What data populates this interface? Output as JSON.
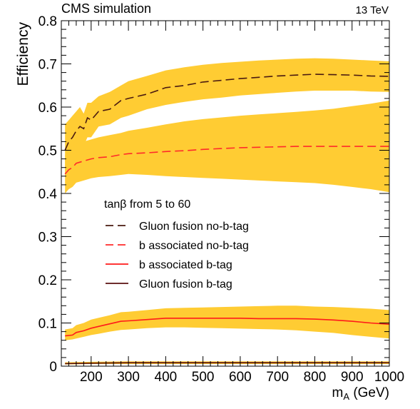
{
  "header": {
    "left_label": "CMS simulation",
    "right_label": "13 TeV"
  },
  "chart_data": {
    "type": "line",
    "title": "",
    "xlabel_main": "m",
    "xlabel_sub": "A",
    "xlabel_unit": "(GeV)",
    "ylabel": "Efficiency",
    "xlim": [
      120,
      1000
    ],
    "ylim": [
      0,
      0.8
    ],
    "x_ticks": [
      200,
      300,
      400,
      500,
      600,
      700,
      800,
      900,
      1000
    ],
    "y_ticks": [
      0,
      0.1,
      0.2,
      0.3,
      0.4,
      0.5,
      0.6,
      0.7,
      0.8
    ],
    "y_tick_labels": [
      "0",
      "0.1",
      "0.2",
      "0.3",
      "0.4",
      "0.5",
      "0.6",
      "0.7",
      "0.8"
    ],
    "legend": {
      "header": "tanβ from 5 to 60",
      "placement": "center-left"
    },
    "band_color": "#ffcc33",
    "series": [
      {
        "name": "Gluon fusion no-b-tag",
        "color": "#4a1a10",
        "dash": "dashed",
        "x": [
          130,
          140,
          150,
          160,
          170,
          180,
          190,
          200,
          220,
          250,
          280,
          300,
          350,
          400,
          450,
          500,
          550,
          600,
          650,
          700,
          750,
          800,
          850,
          900,
          950,
          1000
        ],
        "y": [
          0.5,
          0.52,
          0.53,
          0.545,
          0.555,
          0.55,
          0.575,
          0.57,
          0.59,
          0.595,
          0.615,
          0.62,
          0.63,
          0.645,
          0.65,
          0.658,
          0.662,
          0.666,
          0.669,
          0.672,
          0.674,
          0.676,
          0.675,
          0.674,
          0.672,
          0.671
        ],
        "upper": [
          0.56,
          0.57,
          0.58,
          0.59,
          0.6,
          0.585,
          0.61,
          0.61,
          0.625,
          0.635,
          0.65,
          0.66,
          0.672,
          0.685,
          0.692,
          0.698,
          0.702,
          0.705,
          0.708,
          0.71,
          0.712,
          0.713,
          0.712,
          0.71,
          0.708,
          0.706
        ],
        "lower": [
          0.44,
          0.47,
          0.48,
          0.5,
          0.51,
          0.51,
          0.53,
          0.53,
          0.555,
          0.56,
          0.575,
          0.58,
          0.595,
          0.605,
          0.612,
          0.618,
          0.622,
          0.627,
          0.63,
          0.633,
          0.636,
          0.638,
          0.638,
          0.638,
          0.636,
          0.635
        ]
      },
      {
        "name": "b associated no-b-tag",
        "color": "#ff2a2a",
        "dash": "dashed",
        "x": [
          130,
          140,
          150,
          160,
          180,
          200,
          220,
          250,
          280,
          300,
          350,
          400,
          450,
          500,
          550,
          600,
          650,
          700,
          750,
          800,
          850,
          900,
          950,
          1000
        ],
        "y": [
          0.445,
          0.455,
          0.46,
          0.47,
          0.475,
          0.48,
          0.483,
          0.485,
          0.49,
          0.492,
          0.494,
          0.497,
          0.499,
          0.502,
          0.504,
          0.506,
          0.507,
          0.508,
          0.509,
          0.509,
          0.509,
          0.509,
          0.509,
          0.509
        ],
        "upper": [
          0.49,
          0.5,
          0.51,
          0.515,
          0.52,
          0.525,
          0.53,
          0.535,
          0.54,
          0.545,
          0.552,
          0.56,
          0.567,
          0.572,
          0.576,
          0.58,
          0.583,
          0.586,
          0.589,
          0.592,
          0.596,
          0.602,
          0.608,
          0.615
        ],
        "lower": [
          0.4,
          0.41,
          0.415,
          0.425,
          0.43,
          0.435,
          0.438,
          0.44,
          0.443,
          0.445,
          0.443,
          0.44,
          0.438,
          0.436,
          0.434,
          0.432,
          0.43,
          0.428,
          0.426,
          0.424,
          0.42,
          0.415,
          0.41,
          0.403
        ]
      },
      {
        "name": "b associated b-tag",
        "color": "#ff1a1a",
        "dash": "solid",
        "x": [
          130,
          150,
          160,
          180,
          200,
          220,
          250,
          280,
          300,
          350,
          400,
          450,
          500,
          550,
          600,
          650,
          700,
          750,
          800,
          850,
          900,
          950,
          1000
        ],
        "y": [
          0.07,
          0.072,
          0.078,
          0.082,
          0.088,
          0.092,
          0.098,
          0.104,
          0.105,
          0.108,
          0.111,
          0.111,
          0.111,
          0.111,
          0.111,
          0.11,
          0.11,
          0.11,
          0.109,
          0.107,
          0.104,
          0.1,
          0.097
        ],
        "upper": [
          0.085,
          0.088,
          0.095,
          0.1,
          0.108,
          0.112,
          0.118,
          0.125,
          0.126,
          0.13,
          0.134,
          0.135,
          0.136,
          0.137,
          0.138,
          0.139,
          0.14,
          0.14,
          0.138,
          0.137,
          0.135,
          0.133,
          0.13
        ],
        "lower": [
          0.06,
          0.062,
          0.064,
          0.068,
          0.072,
          0.075,
          0.08,
          0.084,
          0.085,
          0.088,
          0.09,
          0.09,
          0.089,
          0.088,
          0.087,
          0.086,
          0.085,
          0.083,
          0.08,
          0.077,
          0.072,
          0.068,
          0.064
        ]
      },
      {
        "name": "Gluon fusion b-tag",
        "color": "#5a1010",
        "dash": "solid",
        "x": [
          130,
          200,
          300,
          400,
          500,
          600,
          700,
          800,
          900,
          1000
        ],
        "y": [
          0.006,
          0.007,
          0.008,
          0.008,
          0.008,
          0.008,
          0.008,
          0.008,
          0.008,
          0.008
        ],
        "upper": [
          0.009,
          0.01,
          0.011,
          0.011,
          0.011,
          0.011,
          0.011,
          0.011,
          0.011,
          0.011
        ],
        "lower": [
          0.004,
          0.005,
          0.005,
          0.005,
          0.005,
          0.005,
          0.005,
          0.005,
          0.005,
          0.005
        ]
      }
    ]
  }
}
